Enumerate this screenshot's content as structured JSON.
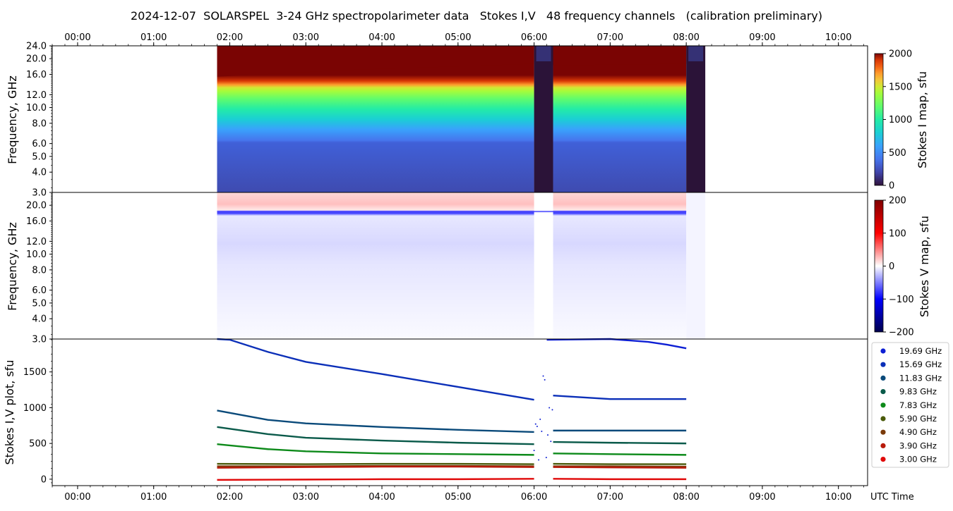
{
  "title": "2024-12-07  SOLARSPEL  3-24 GHz spectropolarimeter data   Stokes I,V   48 frequency channels   (calibration preliminary)",
  "time_ticks": [
    "00:00",
    "01:00",
    "02:00",
    "03:00",
    "04:00",
    "05:00",
    "06:00",
    "07:00",
    "08:00",
    "09:00",
    "10:00"
  ],
  "x_axis_label": "UTC Time",
  "panels": {
    "stokes_i_map": {
      "ylabel": "Frequency, GHz",
      "yticks": [
        "3.0",
        "4.0",
        "5.0",
        "6.0",
        "8.0",
        "10.0",
        "12.0",
        "16.0",
        "20.0",
        "24.0"
      ],
      "colorbar_label": "Stokes I map, sfu",
      "colorbar_ticks": [
        "0",
        "500",
        "1000",
        "1500",
        "2000"
      ]
    },
    "stokes_v_map": {
      "ylabel": "Frequency, GHz",
      "yticks": [
        "3.0",
        "4.0",
        "5.0",
        "6.0",
        "8.0",
        "10.0",
        "12.0",
        "16.0",
        "20.0"
      ],
      "colorbar_label": "Stokes V map, sfu",
      "colorbar_ticks": [
        "200",
        "100",
        "0",
        "−100",
        "−200"
      ]
    },
    "stokes_plot": {
      "ylabel": "Stokes I,V plot, sfu",
      "yticks": [
        "0",
        "500",
        "1000",
        "1500"
      ]
    }
  },
  "legend": [
    {
      "label": "19.69 GHz",
      "color": "#0d1fd4"
    },
    {
      "label": "15.69 GHz",
      "color": "#0b2fb8"
    },
    {
      "label": "11.83 GHz",
      "color": "#0a4a7a"
    },
    {
      "label": "9.83 GHz",
      "color": "#0a5a4a"
    },
    {
      "label": "7.83 GHz",
      "color": "#0d8a1a"
    },
    {
      "label": "5.90 GHz",
      "color": "#4a5a0a"
    },
    {
      "label": "4.90 GHz",
      "color": "#7a3a0a"
    },
    {
      "label": "3.90 GHz",
      "color": "#b81a0a"
    },
    {
      "label": "3.00 GHz",
      "color": "#e00a0a"
    }
  ],
  "chart_data": [
    {
      "type": "heatmap",
      "ylabel": "Frequency, GHz",
      "x_range": [
        "23:40",
        "10:23"
      ],
      "y_range": [
        3.0,
        24.0
      ],
      "yscale": "log",
      "colorbar": {
        "label": "Stokes I map, sfu",
        "range": [
          0,
          2000
        ]
      },
      "data_segments": [
        [
          "01:50",
          "06:00"
        ],
        [
          "06:15",
          "08:00"
        ]
      ],
      "gaps": [
        [
          "06:00",
          "06:15"
        ],
        [
          "08:00",
          "08:15"
        ]
      ],
      "bands": [
        {
          "freq_range": [
            3.0,
            6.0
          ],
          "sfu": 150
        },
        {
          "freq_range": [
            6.0,
            8.0
          ],
          "sfu": 550
        },
        {
          "freq_range": [
            8.0,
            10.0
          ],
          "sfu": 750
        },
        {
          "freq_range": [
            10.0,
            12.0
          ],
          "sfu": 950
        },
        {
          "freq_range": [
            12.0,
            15.0
          ],
          "sfu": 1150
        },
        {
          "freq_range": [
            15.0,
            24.0
          ],
          "sfu": 2000
        }
      ]
    },
    {
      "type": "heatmap",
      "ylabel": "Frequency, GHz",
      "x_range": [
        "23:40",
        "10:23"
      ],
      "y_range": [
        3.0,
        24.0
      ],
      "yscale": "log",
      "colorbar": {
        "label": "Stokes V map, sfu",
        "range": [
          -200,
          200
        ]
      },
      "bands": [
        {
          "freq_range": [
            3.0,
            8.0
          ],
          "sfu": -10
        },
        {
          "freq_range": [
            8.0,
            12.0
          ],
          "sfu": -20
        },
        {
          "freq_range": [
            12.0,
            18.0
          ],
          "sfu": -30
        },
        {
          "freq_range": [
            18.0,
            18.6
          ],
          "sfu": -120
        },
        {
          "freq_range": [
            19.0,
            22.0
          ],
          "sfu": 40
        }
      ]
    },
    {
      "type": "line",
      "ylabel": "Stokes I,V plot, sfu",
      "x_range": [
        "23:40",
        "10:23"
      ],
      "ylim": [
        -90,
        1960
      ],
      "series": [
        {
          "name": "19.69 GHz",
          "x": [
            "06:10",
            "07:00",
            "07:30",
            "07:45",
            "08:00"
          ],
          "y": [
            1950,
            2000,
            1920,
            1880,
            1830
          ]
        },
        {
          "name": "15.69 GHz",
          "x": [
            "01:50",
            "02:00",
            "02:30",
            "03:00",
            "04:00",
            "05:00",
            "06:00",
            "06:15",
            "07:00",
            "08:00"
          ],
          "y": [
            2100,
            1950,
            1780,
            1640,
            1470,
            1290,
            1110,
            1170,
            1120,
            1120
          ]
        },
        {
          "name": "11.83 GHz",
          "x": [
            "01:50",
            "02:30",
            "03:00",
            "04:00",
            "05:00",
            "06:00",
            "06:15",
            "07:00",
            "08:00"
          ],
          "y": [
            960,
            830,
            780,
            730,
            690,
            660,
            680,
            680,
            680
          ]
        },
        {
          "name": "9.83 GHz",
          "x": [
            "01:50",
            "02:30",
            "03:00",
            "04:00",
            "05:00",
            "06:00",
            "06:15",
            "07:00",
            "08:00"
          ],
          "y": [
            730,
            630,
            580,
            540,
            510,
            490,
            520,
            510,
            500
          ]
        },
        {
          "name": "7.83 GHz",
          "x": [
            "01:50",
            "02:30",
            "03:00",
            "04:00",
            "05:00",
            "06:00",
            "06:15",
            "07:00",
            "08:00"
          ],
          "y": [
            490,
            420,
            390,
            360,
            350,
            340,
            360,
            350,
            340
          ]
        },
        {
          "name": "5.90 GHz",
          "x": [
            "01:50",
            "03:00",
            "04:00",
            "05:00",
            "06:00",
            "06:15",
            "07:00",
            "08:00"
          ],
          "y": [
            215,
            210,
            215,
            215,
            210,
            215,
            210,
            210
          ]
        },
        {
          "name": "4.90 GHz",
          "x": [
            "01:50",
            "03:00",
            "04:00",
            "05:00",
            "06:00",
            "06:15",
            "07:00",
            "08:00"
          ],
          "y": [
            180,
            180,
            185,
            185,
            180,
            180,
            180,
            175
          ]
        },
        {
          "name": "3.90 GHz",
          "x": [
            "01:50",
            "03:00",
            "04:00",
            "05:00",
            "06:00",
            "06:15",
            "07:00",
            "08:00"
          ],
          "y": [
            160,
            170,
            175,
            175,
            170,
            170,
            165,
            160
          ]
        },
        {
          "name": "3.00 GHz",
          "x": [
            "01:50",
            "03:00",
            "04:00",
            "05:00",
            "06:00",
            "06:15",
            "07:00",
            "08:00"
          ],
          "y": [
            -10,
            -5,
            0,
            0,
            5,
            5,
            0,
            0
          ]
        }
      ]
    }
  ]
}
